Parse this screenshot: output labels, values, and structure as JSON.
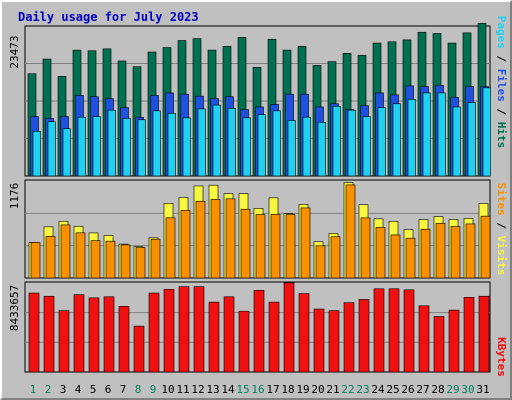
{
  "colors": {
    "hits": "#007050",
    "files": "#2050e0",
    "pages": "#20d0f0",
    "visits": "#f8f840",
    "sites": "#f89000",
    "kbytes": "#f01010"
  },
  "chart_data": [
    {
      "type": "bar",
      "title": "Daily usage for July 2023",
      "y_tick": "23473",
      "ylim": [
        0,
        23473
      ],
      "legend": [
        "Pages",
        "Files",
        "Hits"
      ],
      "categories": [
        "1",
        "2",
        "3",
        "4",
        "5",
        "6",
        "7",
        "8",
        "9",
        "10",
        "11",
        "12",
        "13",
        "14",
        "15",
        "16",
        "17",
        "18",
        "19",
        "20",
        "21",
        "22",
        "23",
        "24",
        "25",
        "26",
        "27",
        "28",
        "29",
        "30",
        "31"
      ],
      "weekend_days": [
        "1",
        "2",
        "8",
        "9",
        "15",
        "16",
        "22",
        "23",
        "29",
        "30"
      ],
      "series": [
        {
          "name": "Hits",
          "values": [
            16000,
            18300,
            15600,
            19700,
            19600,
            19900,
            18000,
            17100,
            19400,
            20100,
            21200,
            21500,
            19700,
            20300,
            21700,
            17000,
            21400,
            19700,
            20300,
            17300,
            17900,
            19200,
            18900,
            20800,
            21000,
            21300,
            22500,
            22300,
            20800,
            22400,
            23900
          ]
        },
        {
          "name": "Files",
          "values": [
            9300,
            9000,
            9300,
            12600,
            12400,
            12100,
            10700,
            9200,
            12600,
            13000,
            12800,
            12500,
            12100,
            12400,
            10400,
            10800,
            11200,
            12800,
            12800,
            10800,
            11300,
            10400,
            11000,
            13000,
            12700,
            14100,
            14000,
            14200,
            12300,
            14000,
            14000
          ]
        },
        {
          "name": "Pages",
          "values": [
            7000,
            8500,
            7400,
            9200,
            9300,
            10300,
            9000,
            8800,
            10200,
            9800,
            9100,
            10500,
            11100,
            10600,
            9100,
            9600,
            10200,
            8700,
            9200,
            8400,
            10900,
            10300,
            9300,
            10700,
            11300,
            12000,
            13000,
            13000,
            10800,
            11500,
            13800
          ]
        }
      ]
    },
    {
      "type": "bar",
      "y_tick": "1176",
      "ylim": [
        0,
        1176
      ],
      "legend": [
        "Sites",
        "Visits"
      ],
      "categories": [
        "1",
        "2",
        "3",
        "4",
        "5",
        "6",
        "7",
        "8",
        "9",
        "10",
        "11",
        "12",
        "13",
        "14",
        "15",
        "16",
        "17",
        "18",
        "19",
        "20",
        "21",
        "22",
        "23",
        "24",
        "25",
        "26",
        "27",
        "28",
        "29",
        "30",
        "31"
      ],
      "series": [
        {
          "name": "Visits",
          "values": [
            426,
            614,
            681,
            621,
            541,
            510,
            407,
            378,
            482,
            896,
            966,
            1105,
            1114,
            1013,
            1013,
            836,
            962,
            772,
            884,
            435,
            535,
            1145,
            881,
            710,
            681,
            580,
            701,
            736,
            702,
            716,
            894
          ]
        },
        {
          "name": "Sites",
          "values": [
            426,
            500,
            637,
            542,
            448,
            442,
            397,
            366,
            466,
            722,
            812,
            921,
            943,
            950,
            825,
            761,
            763,
            762,
            841,
            386,
            495,
            1117,
            721,
            607,
            517,
            478,
            585,
            655,
            618,
            649,
            742
          ]
        }
      ]
    },
    {
      "type": "bar",
      "y_tick": "8433657",
      "ylim": [
        0,
        8433657
      ],
      "legend": [
        "KBytes"
      ],
      "categories": [
        "1",
        "2",
        "3",
        "4",
        "5",
        "6",
        "7",
        "8",
        "9",
        "10",
        "11",
        "12",
        "13",
        "14",
        "15",
        "16",
        "17",
        "18",
        "19",
        "20",
        "21",
        "22",
        "23",
        "24",
        "25",
        "26",
        "27",
        "28",
        "29",
        "30",
        "31"
      ],
      "series": [
        {
          "name": "KBytes",
          "values": [
            7400000,
            7100000,
            5750000,
            7250000,
            6950000,
            7050000,
            6150000,
            4300000,
            7400000,
            7750000,
            8000000,
            8000000,
            6550000,
            7050000,
            5700000,
            7650000,
            6550000,
            8350000,
            7350000,
            5900000,
            5750000,
            6500000,
            6800000,
            7800000,
            7800000,
            7700000,
            6200000,
            5200000,
            5800000,
            7000000,
            7100000
          ]
        }
      ]
    }
  ]
}
